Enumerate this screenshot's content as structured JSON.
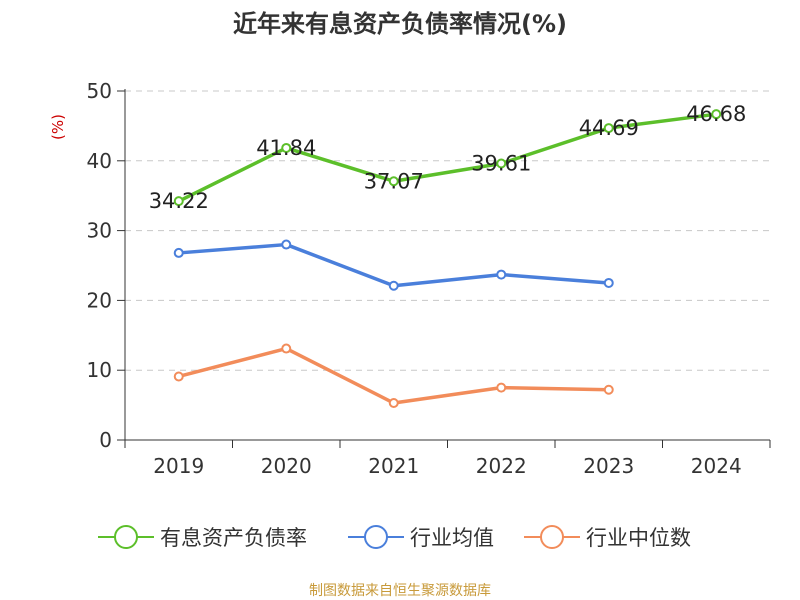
{
  "chart_data": {
    "type": "line",
    "title": "近年来有息资产负债率情况(%)",
    "ylabel": "(%)",
    "xlabel": "",
    "categories": [
      "2019",
      "2020",
      "2021",
      "2022",
      "2023",
      "2024"
    ],
    "ylim": [
      0,
      50
    ],
    "yticks": [
      0,
      10,
      20,
      30,
      40,
      50
    ],
    "grid": true,
    "legend_position": "bottom",
    "series": [
      {
        "name": "有息资产负债率",
        "color": "#5cbf2a",
        "values": [
          34.22,
          41.84,
          37.07,
          39.61,
          44.69,
          46.68
        ],
        "value_labels": [
          "34.22",
          "41.84",
          "37.07",
          "39.61",
          "44.69",
          "46.68"
        ],
        "show_labels": true
      },
      {
        "name": "行业均值",
        "color": "#4a7fdb",
        "values": [
          26.8,
          28.0,
          22.1,
          23.7,
          22.5,
          null
        ],
        "show_labels": false
      },
      {
        "name": "行业中位数",
        "color": "#f28c5a",
        "values": [
          9.1,
          13.1,
          5.3,
          7.5,
          7.2,
          null
        ],
        "show_labels": false
      }
    ],
    "source": "制图数据来自恒生聚源数据库"
  }
}
